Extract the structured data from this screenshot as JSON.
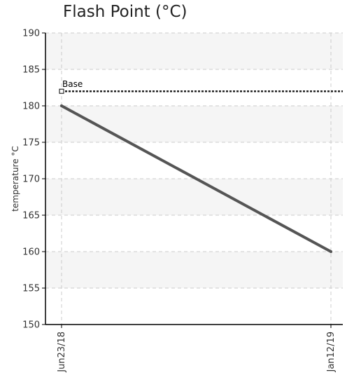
{
  "chart_data": {
    "type": "line",
    "title": "Flash Point (°C)",
    "xlabel": "",
    "ylabel": "temperature °C",
    "categories": [
      "Jun23/18",
      "Jan12/19"
    ],
    "series": [
      {
        "values": [
          180,
          160
        ]
      }
    ],
    "ylim": [
      150,
      190
    ],
    "yticks": [
      150,
      155,
      160,
      165,
      170,
      175,
      180,
      185,
      190
    ],
    "reference_line": {
      "label": "Base",
      "value": 182
    },
    "grid": true,
    "colors": {
      "series": "#555555",
      "reference": "#222222",
      "band": "#f5f5f5",
      "grid": "#cccccc",
      "axis": "#000000"
    }
  }
}
